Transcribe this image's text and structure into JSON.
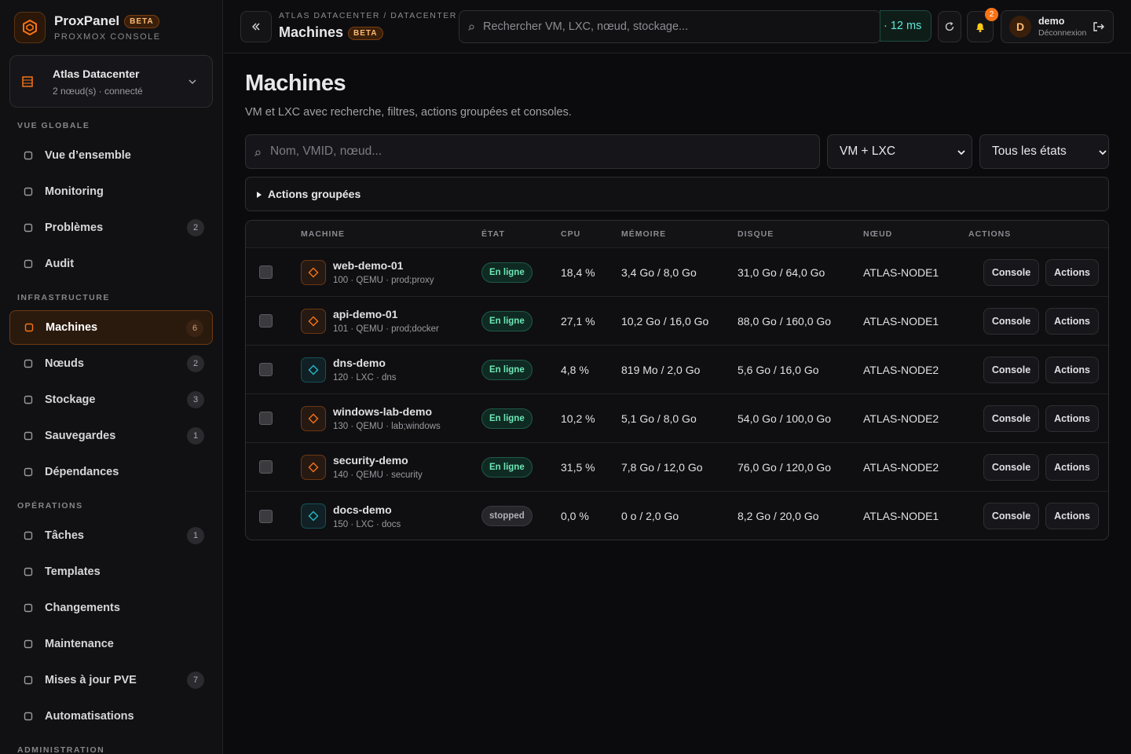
{
  "brand": {
    "name": "ProxPanel",
    "badge": "BETA",
    "subtitle": "PROXMOX CONSOLE"
  },
  "datacenter": {
    "name": "Atlas Datacenter",
    "status": "2 nœud(s) · connecté"
  },
  "nav": [
    {
      "title": "VUE GLOBALE",
      "items": [
        {
          "label": "Vue d’ensemble"
        },
        {
          "label": "Monitoring"
        },
        {
          "label": "Problèmes",
          "count": 2
        },
        {
          "label": "Audit"
        }
      ]
    },
    {
      "title": "INFRASTRUCTURE",
      "items": [
        {
          "label": "Machines",
          "count": 6,
          "active": true
        },
        {
          "label": "Nœuds",
          "count": 2
        },
        {
          "label": "Stockage",
          "count": 3
        },
        {
          "label": "Sauvegardes",
          "count": 1
        },
        {
          "label": "Dépendances"
        }
      ]
    },
    {
      "title": "OPÉRATIONS",
      "items": [
        {
          "label": "Tâches",
          "count": 1
        },
        {
          "label": "Templates"
        },
        {
          "label": "Changements"
        },
        {
          "label": "Maintenance"
        },
        {
          "label": "Mises à jour PVE",
          "count": 7
        },
        {
          "label": "Automatisations"
        }
      ]
    },
    {
      "title": "ADMINISTRATION",
      "items": []
    }
  ],
  "topbar": {
    "breadcrumb": "ATLAS DATACENTER / DATACENTER",
    "title": "Machines",
    "badge": "BETA",
    "search_placeholder": "Rechercher VM, LXC, nœud, stockage...",
    "latency": "· 12 ms",
    "notifications": 2,
    "user": {
      "initial": "D",
      "name": "demo",
      "logout": "Déconnexion"
    }
  },
  "page": {
    "title": "Machines",
    "description": "VM et LXC avec recherche, filtres, actions groupées et consoles.",
    "filter_placeholder": "Nom, VMID, nœud...",
    "type_select": "VM + LXC",
    "state_select": "Tous les états",
    "bulk_actions": "Actions groupées"
  },
  "table": {
    "headers": [
      "MACHINE",
      "ÉTAT",
      "CPU",
      "MÉMOIRE",
      "DISQUE",
      "NŒUD",
      "ACTIONS"
    ],
    "row_actions": [
      "Console",
      "Actions"
    ],
    "rows": [
      {
        "name": "web-demo-01",
        "meta": "100 · QEMU · prod;proxy",
        "status": "En ligne",
        "cpu": "18,4 %",
        "memory": "3,4 Go / 8,0 Go",
        "disk": "31,0 Go / 64,0 Go",
        "node": "ATLAS-NODE1",
        "icon_color": "#f97316",
        "online": true
      },
      {
        "name": "api-demo-01",
        "meta": "101 · QEMU · prod;docker",
        "status": "En ligne",
        "cpu": "27,1 %",
        "memory": "10,2 Go / 16,0 Go",
        "disk": "88,0 Go / 160,0 Go",
        "node": "ATLAS-NODE1",
        "icon_color": "#f97316",
        "online": true
      },
      {
        "name": "dns-demo",
        "meta": "120 · LXC · dns",
        "status": "En ligne",
        "cpu": "4,8 %",
        "memory": "819 Mo / 2,0 Go",
        "disk": "5,6 Go / 16,0 Go",
        "node": "ATLAS-NODE2",
        "icon_color": "#22b8c9",
        "online": true
      },
      {
        "name": "windows-lab-demo",
        "meta": "130 · QEMU · lab;windows",
        "status": "En ligne",
        "cpu": "10,2 %",
        "memory": "5,1 Go / 8,0 Go",
        "disk": "54,0 Go / 100,0 Go",
        "node": "ATLAS-NODE2",
        "icon_color": "#f97316",
        "online": true
      },
      {
        "name": "security-demo",
        "meta": "140 · QEMU · security",
        "status": "En ligne",
        "cpu": "31,5 %",
        "memory": "7,8 Go / 12,0 Go",
        "disk": "76,0 Go / 120,0 Go",
        "node": "ATLAS-NODE2",
        "icon_color": "#f97316",
        "online": true
      },
      {
        "name": "docs-demo",
        "meta": "150 · LXC · docs",
        "status": "stopped",
        "cpu": "0,0 %",
        "memory": "0 o / 2,0 Go",
        "disk": "8,2 Go / 20,0 Go",
        "node": "ATLAS-NODE1",
        "icon_color": "#22b8c9",
        "online": false
      }
    ]
  }
}
